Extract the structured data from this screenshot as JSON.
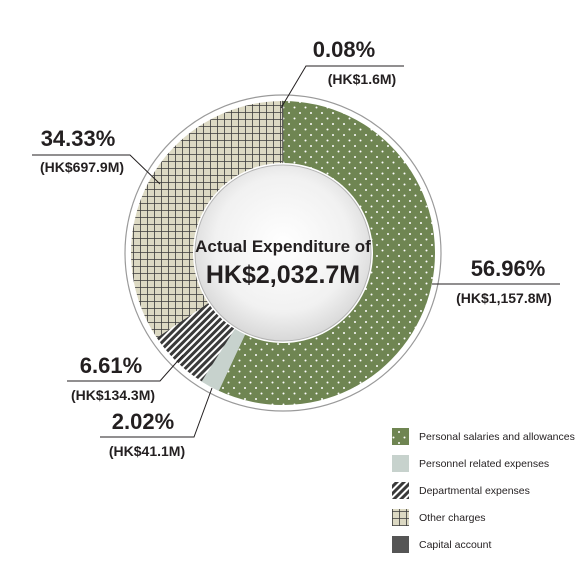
{
  "chart_data": {
    "type": "pie",
    "center_label": {
      "line1": "Actual Expenditure of",
      "line2": "HK$2,032.7M"
    },
    "slices": [
      {
        "name": "Personal salaries and allowances",
        "value": 1157.8,
        "percent_label": "56.96%",
        "amount_label": "(HK$1,157.8M)",
        "color": "#6f8552",
        "pattern": "dots"
      },
      {
        "name": "Personnel related expenses",
        "value": 41.1,
        "percent_label": "2.02%",
        "amount_label": "(HK$41.1M)",
        "color": "#c7d2cd",
        "pattern": "solid"
      },
      {
        "name": "Departmental expenses",
        "value": 134.3,
        "percent_label": "6.61%",
        "amount_label": "(HK$134.3M)",
        "color": "#3a3a3a",
        "pattern": "diagonal"
      },
      {
        "name": "Other charges",
        "value": 697.9,
        "percent_label": "34.33%",
        "amount_label": "(HK$697.9M)",
        "color": "#dcd9c3",
        "pattern": "grid"
      },
      {
        "name": "Capital account",
        "value": 1.6,
        "percent_label": "0.08%",
        "amount_label": "(HK$1.6M)",
        "color": "#555555",
        "pattern": "solid"
      }
    ],
    "legend": [
      "Personal salaries and allowances",
      "Personnel related expenses",
      "Departmental expenses",
      "Other charges",
      "Capital account"
    ],
    "legend_position": "bottom-right"
  }
}
